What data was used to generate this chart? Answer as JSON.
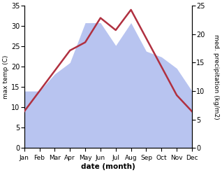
{
  "months": [
    "Jan",
    "Feb",
    "Mar",
    "Apr",
    "May",
    "Jun",
    "Jul",
    "Aug",
    "Sep",
    "Oct",
    "Nov",
    "Dec"
  ],
  "temp": [
    9,
    14,
    19,
    24,
    26,
    32,
    29,
    34,
    27,
    20,
    13,
    9
  ],
  "precip": [
    10,
    10,
    13,
    15,
    22,
    22,
    18,
    22,
    17,
    16,
    14,
    10
  ],
  "temp_color": "#b03040",
  "precip_color": "#b8c4f0",
  "temp_ylim": [
    0,
    35
  ],
  "precip_ylim": [
    0,
    25
  ],
  "temp_yticks": [
    0,
    5,
    10,
    15,
    20,
    25,
    30,
    35
  ],
  "precip_yticks": [
    0,
    5,
    10,
    15,
    20,
    25
  ],
  "xlabel": "date (month)",
  "ylabel_left": "max temp (C)",
  "ylabel_right": "med. precipitation (kg/m2)",
  "figsize": [
    3.18,
    2.47
  ],
  "dpi": 100
}
